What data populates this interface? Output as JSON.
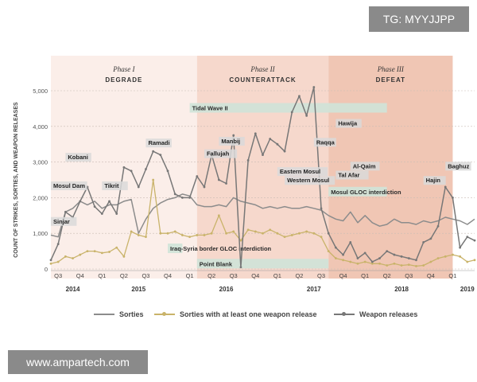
{
  "badges": {
    "tg": "TG: MYYJJPP",
    "watermark": "www.ampartech.com"
  },
  "chart_data": {
    "type": "line",
    "ylabel": "COUNT OF STRIKES, SORTIES, AND WEAPON RELEASES",
    "ylim": [
      0,
      5000
    ],
    "yticks": [
      "0",
      "1,000",
      "2,000",
      "3,000",
      "4,000",
      "5,000"
    ],
    "grid": true,
    "legend_position": "bottom",
    "phases": [
      {
        "phase": "Phase I",
        "name": "DEGRADE",
        "start_month": 0,
        "end_month": 20,
        "color": "#fbeee9"
      },
      {
        "phase": "Phase II",
        "name": "COUNTERATTACK",
        "start_month": 20,
        "end_month": 38,
        "color": "#f6d8cc"
      },
      {
        "phase": "Phase III",
        "name": "DEFEAT",
        "start_month": 38,
        "end_month": 55,
        "color": "#f0c6b4"
      }
    ],
    "quarter_ticks": [
      "Q3",
      "Q4",
      "Q1",
      "Q2",
      "Q3",
      "Q4",
      "Q1",
      "Q2",
      "Q3",
      "Q4",
      "Q1",
      "Q2",
      "Q3",
      "Q4",
      "Q1",
      "Q2",
      "Q3",
      "Q4",
      "Q1"
    ],
    "years": [
      {
        "label": "2014",
        "month": 3
      },
      {
        "label": "2015",
        "month": 12
      },
      {
        "label": "2016",
        "month": 24
      },
      {
        "label": "2017",
        "month": 36
      },
      {
        "label": "2018",
        "month": 48
      },
      {
        "label": "2019",
        "month": 57
      }
    ],
    "series": [
      {
        "name": "Sorties",
        "color": "#8c8c8c",
        "values": [
          950,
          900,
          1600,
          1700,
          1900,
          1800,
          1900,
          1700,
          1800,
          1800,
          1900,
          1950,
          1000,
          1400,
          1700,
          1850,
          1950,
          2000,
          2100,
          2050,
          1800,
          1750,
          1750,
          1800,
          1750,
          2000,
          1900,
          1850,
          1800,
          1700,
          1750,
          1700,
          1750,
          1700,
          1700,
          1750,
          1700,
          1650,
          1500,
          1400,
          1350,
          1600,
          1300,
          1500,
          1300,
          1200,
          1250,
          1400,
          1300,
          1300,
          1250,
          1350,
          1300,
          1350,
          1450,
          1400,
          1350,
          1250,
          1400
        ]
      },
      {
        "name": "Sorties with at least one weapon release",
        "color": "#c9b36a",
        "values": [
          150,
          200,
          350,
          300,
          400,
          500,
          500,
          450,
          480,
          600,
          350,
          1050,
          950,
          900,
          2500,
          1000,
          1000,
          1050,
          950,
          900,
          950,
          950,
          1000,
          1500,
          1000,
          1050,
          800,
          1100,
          1050,
          1000,
          1100,
          1000,
          900,
          950,
          1000,
          1050,
          1000,
          900,
          500,
          300,
          250,
          200,
          150,
          200,
          150,
          150,
          100,
          150,
          100,
          120,
          80,
          100,
          200,
          300,
          350,
          400,
          350,
          200,
          250
        ]
      },
      {
        "name": "Weapon releases",
        "color": "#777777",
        "values": [
          250,
          700,
          1600,
          1450,
          1900,
          2300,
          1750,
          1550,
          1900,
          1550,
          2850,
          2750,
          2300,
          2800,
          3300,
          3200,
          2750,
          2100,
          2000,
          2000,
          2600,
          2300,
          3200,
          2500,
          2400,
          3750,
          50,
          3050,
          3800,
          3200,
          3650,
          3500,
          3300,
          4400,
          4850,
          4300,
          5100,
          1700,
          1000,
          600,
          400,
          750,
          300,
          450,
          200,
          300,
          500,
          400,
          350,
          300,
          250,
          750,
          850,
          1200,
          2300,
          2000,
          600,
          900,
          800
        ]
      }
    ],
    "bands": [
      {
        "label": "Tidal Wave II",
        "start_month": 19,
        "end_month": 46,
        "level": 4520
      },
      {
        "label": "Mosul GLOC interdiction",
        "start_month": 38,
        "end_month": 46,
        "level": 2170
      },
      {
        "label": "Point Blank",
        "start_month": 20,
        "end_month": 38,
        "level": 150
      },
      {
        "label": "Iraq-Syria border GLOC interdiction",
        "start_month": 16,
        "end_month": 18,
        "level": 580
      }
    ],
    "annotations": [
      {
        "label": "Mosul Dam",
        "month": 0,
        "level": 2300
      },
      {
        "label": "Sinjar",
        "month": 0,
        "level": 1300
      },
      {
        "label": "Kobani",
        "month": 2,
        "level": 3100
      },
      {
        "label": "Tikrit",
        "month": 7,
        "level": 2300
      },
      {
        "label": "Ramadi",
        "month": 13,
        "level": 3500
      },
      {
        "label": "Fallujah",
        "month": 21,
        "level": 3200
      },
      {
        "label": "Manbij",
        "month": 23,
        "level": 3550
      },
      {
        "label": "Eastern Mosul",
        "month": 31,
        "level": 2700
      },
      {
        "label": "Western Mosul",
        "month": 32,
        "level": 2450
      },
      {
        "label": "Raqqa",
        "month": 36,
        "level": 3520
      },
      {
        "label": "Hawija",
        "month": 39,
        "level": 4050
      },
      {
        "label": "Tal Afar",
        "month": 39,
        "level": 2600
      },
      {
        "label": "Al-Qaim",
        "month": 41,
        "level": 2850
      },
      {
        "label": "Baghuz",
        "month": 54,
        "level": 2850
      },
      {
        "label": "Hajin",
        "month": 51,
        "level": 2450
      }
    ]
  }
}
